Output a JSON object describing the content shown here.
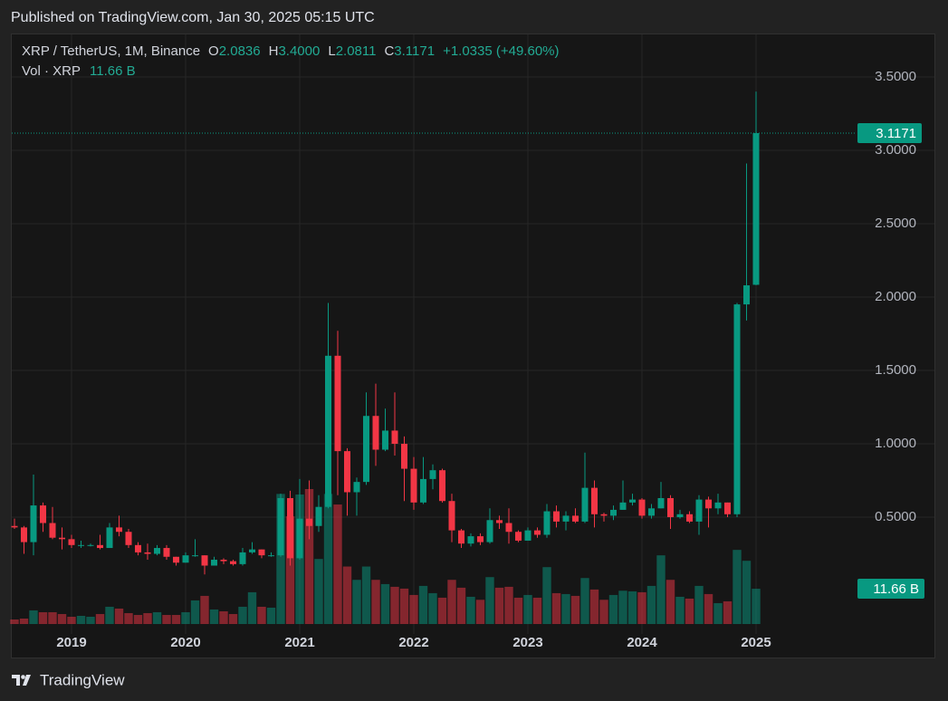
{
  "header": {
    "published": "Published on TradingView.com, Jan 30, 2025 05:15 UTC",
    "brand": "TradingView"
  },
  "chart_data": {
    "type": "candlestick",
    "symbol": "XRP / TetherUS, 1M, Binance",
    "ohlc_legend": [
      {
        "key": "O",
        "value": "2.0836"
      },
      {
        "key": "H",
        "value": "3.4000"
      },
      {
        "key": "L",
        "value": "2.0811"
      },
      {
        "key": "C",
        "value": "3.1171"
      }
    ],
    "change": "+1.0335 (+49.60%)",
    "volume_legend": {
      "label": "Vol · XRP",
      "value": "11.66 B"
    },
    "last_price_label": "3.1171",
    "last_volume_label": "11.66 B",
    "up_color": "#089981",
    "down_color": "#f23645",
    "categories": [
      null,
      null,
      null,
      null,
      null,
      null,
      "2019",
      null,
      null,
      null,
      null,
      null,
      null,
      null,
      null,
      null,
      null,
      null,
      "2020",
      null,
      null,
      null,
      null,
      null,
      null,
      null,
      null,
      null,
      null,
      null,
      "2021",
      null,
      null,
      null,
      null,
      null,
      null,
      null,
      null,
      null,
      null,
      null,
      "2022",
      null,
      null,
      null,
      null,
      null,
      null,
      null,
      null,
      null,
      null,
      null,
      "2023",
      null,
      null,
      null,
      null,
      null,
      null,
      null,
      null,
      null,
      null,
      null,
      "2024",
      null,
      null,
      null,
      null,
      null,
      null,
      null,
      null,
      null,
      null,
      null,
      "2025"
    ],
    "open": [
      0.44,
      0.43,
      0.33,
      0.58,
      0.46,
      0.36,
      0.35,
      0.31,
      0.31,
      0.31,
      0.29,
      0.43,
      0.4,
      0.31,
      0.26,
      0.25,
      0.29,
      0.23,
      0.19,
      0.24,
      0.24,
      0.17,
      0.21,
      0.2,
      0.18,
      0.26,
      0.28,
      0.24,
      0.24,
      0.63,
      0.22,
      0.49,
      0.44,
      0.57,
      1.6,
      0.95,
      0.67,
      0.74,
      1.19,
      0.96,
      1.09,
      1.0,
      0.83,
      0.6,
      0.76,
      0.82,
      0.61,
      0.41,
      0.32,
      0.37,
      0.33,
      0.48,
      0.46,
      0.4,
      0.34,
      0.41,
      0.38,
      0.54,
      0.47,
      0.51,
      0.47,
      0.7,
      0.52,
      0.51,
      0.55,
      0.6,
      0.62,
      0.51,
      0.56,
      0.63,
      0.5,
      0.52,
      0.47,
      0.62,
      0.56,
      0.6,
      0.52,
      1.95,
      2.0836
    ],
    "high": [
      0.49,
      0.44,
      0.79,
      0.6,
      0.57,
      0.43,
      0.38,
      0.34,
      0.32,
      0.38,
      0.46,
      0.51,
      0.42,
      0.33,
      0.32,
      0.31,
      0.31,
      0.23,
      0.26,
      0.35,
      0.24,
      0.23,
      0.22,
      0.21,
      0.29,
      0.33,
      0.28,
      0.26,
      0.66,
      0.68,
      0.76,
      0.75,
      0.65,
      1.96,
      1.77,
      0.97,
      0.77,
      1.35,
      1.41,
      1.24,
      1.35,
      1.05,
      0.91,
      0.91,
      0.86,
      0.83,
      0.66,
      0.42,
      0.39,
      0.39,
      0.56,
      0.51,
      0.56,
      0.41,
      0.43,
      0.43,
      0.59,
      0.58,
      0.54,
      0.56,
      0.94,
      0.75,
      0.53,
      0.58,
      0.75,
      0.66,
      0.63,
      0.59,
      0.74,
      0.65,
      0.55,
      0.54,
      0.65,
      0.64,
      0.66,
      0.6,
      1.96,
      2.91,
      3.4
    ],
    "low": [
      0.42,
      0.25,
      0.24,
      0.4,
      0.35,
      0.28,
      0.29,
      0.29,
      0.3,
      0.28,
      0.29,
      0.37,
      0.29,
      0.24,
      0.21,
      0.24,
      0.21,
      0.17,
      0.19,
      0.23,
      0.11,
      0.17,
      0.18,
      0.17,
      0.17,
      0.25,
      0.22,
      0.23,
      0.23,
      0.17,
      0.21,
      0.35,
      0.4,
      0.56,
      0.65,
      0.51,
      0.51,
      0.72,
      0.85,
      0.95,
      0.92,
      0.61,
      0.55,
      0.59,
      0.69,
      0.6,
      0.33,
      0.29,
      0.3,
      0.31,
      0.32,
      0.42,
      0.32,
      0.33,
      0.34,
      0.36,
      0.36,
      0.43,
      0.41,
      0.46,
      0.46,
      0.43,
      0.47,
      0.48,
      0.55,
      0.58,
      0.49,
      0.49,
      0.56,
      0.42,
      0.49,
      0.46,
      0.38,
      0.43,
      0.52,
      0.5,
      0.5,
      1.84,
      2.0811
    ],
    "close": [
      0.43,
      0.33,
      0.58,
      0.46,
      0.36,
      0.35,
      0.31,
      0.31,
      0.31,
      0.29,
      0.43,
      0.4,
      0.31,
      0.26,
      0.25,
      0.29,
      0.23,
      0.19,
      0.24,
      0.24,
      0.17,
      0.21,
      0.2,
      0.18,
      0.26,
      0.28,
      0.24,
      0.24,
      0.63,
      0.22,
      0.49,
      0.44,
      0.57,
      1.6,
      0.95,
      0.67,
      0.74,
      1.19,
      0.96,
      1.09,
      1.0,
      0.83,
      0.6,
      0.76,
      0.82,
      0.61,
      0.41,
      0.32,
      0.37,
      0.33,
      0.48,
      0.46,
      0.4,
      0.34,
      0.41,
      0.38,
      0.54,
      0.47,
      0.51,
      0.47,
      0.7,
      0.52,
      0.51,
      0.55,
      0.6,
      0.62,
      0.51,
      0.56,
      0.63,
      0.5,
      0.52,
      0.47,
      0.62,
      0.56,
      0.6,
      0.52,
      1.95,
      2.08,
      3.1171
    ],
    "volume": [
      1.5,
      1.8,
      4.5,
      3.9,
      3.9,
      3.3,
      2.4,
      2.7,
      2.4,
      3.3,
      5.7,
      5.1,
      3.6,
      3.0,
      3.6,
      3.9,
      3.0,
      3.0,
      3.9,
      7.8,
      9.3,
      4.8,
      4.2,
      3.3,
      5.7,
      10.5,
      5.7,
      5.4,
      43,
      35.6,
      42.8,
      44.6,
      21.5,
      43,
      39.5,
      19,
      14.6,
      19,
      14.6,
      13.2,
      12.3,
      11.7,
      9.6,
      12.6,
      10.2,
      8.7,
      14.6,
      12,
      9,
      8,
      15.5,
      12,
      12.3,
      8.7,
      9.6,
      8.7,
      18.8,
      10.2,
      9.9,
      9.3,
      15.2,
      11.4,
      8,
      9.6,
      11,
      10.8,
      10.5,
      12.6,
      22.7,
      14.6,
      9,
      8.4,
      12.6,
      9.9,
      6.9,
      7.5,
      24.5,
      20.9,
      11.66
    ],
    "ylim": [
      -0.296,
      3.796
    ],
    "yticks": [
      {
        "value": 0.5,
        "label": "0.5000"
      },
      {
        "value": 1.0,
        "label": "1.0000"
      },
      {
        "value": 1.5,
        "label": "1.5000"
      },
      {
        "value": 2.0,
        "label": "2.0000"
      },
      {
        "value": 2.5,
        "label": "2.5000"
      },
      {
        "value": 3.0,
        "label": "3.0000"
      },
      {
        "value": 3.5,
        "label": "3.5000"
      }
    ],
    "grid": true
  }
}
